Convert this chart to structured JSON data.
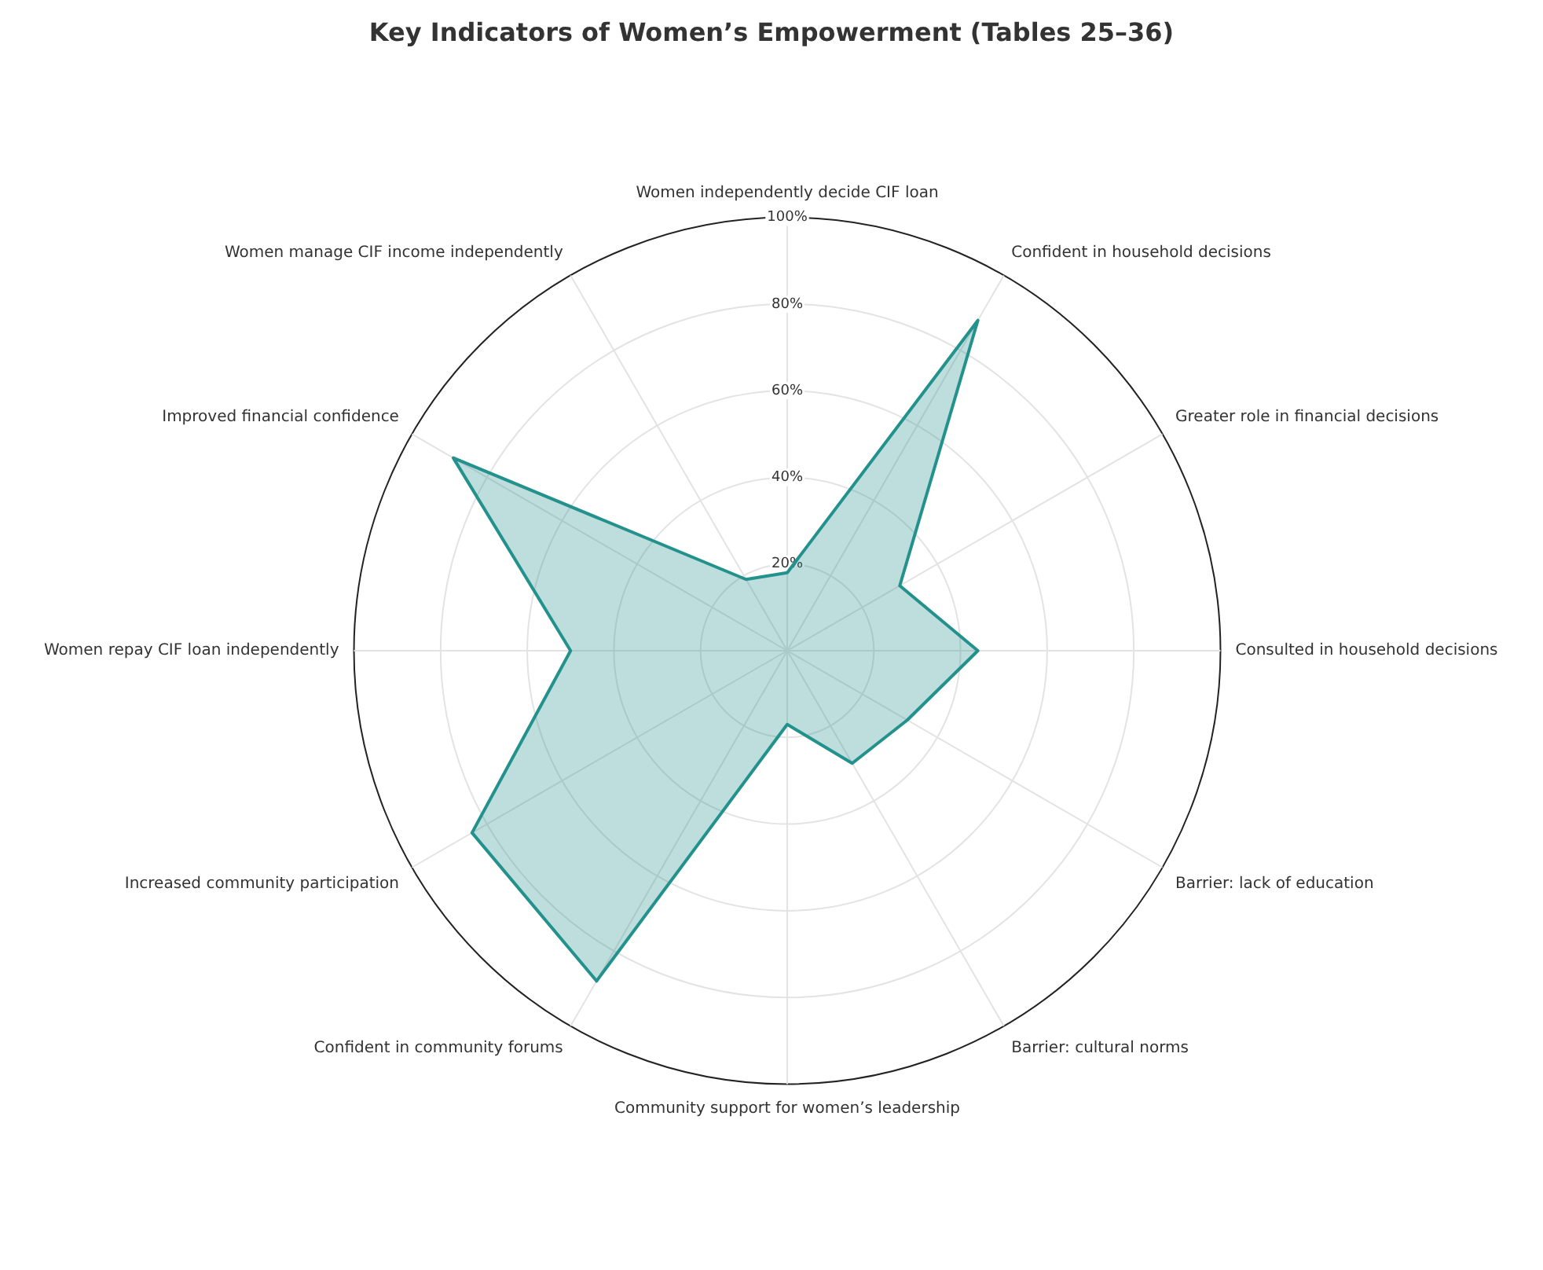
{
  "chart_data": {
    "type": "radar",
    "title": "Key Indicators of Women’s Empowerment (Tables 25–36)",
    "categories": [
      "Women independently decide CIF loan",
      "Confident in household decisions",
      "Greater role in financial decisions",
      "Consulted in household decisions",
      "Barrier: lack of education",
      "Barrier: cultural norms",
      "Community support for women’s leadership",
      "Confident in community forums",
      "Increased community participation",
      "Women repay CIF loan independently",
      "Improved financial confidence",
      "Women manage CIF income independently"
    ],
    "series": [
      {
        "color": "#23918c",
        "values": [
          18,
          88,
          30,
          44,
          32,
          30,
          17,
          88,
          84,
          50,
          89,
          19
        ]
      }
    ],
    "ylim": [
      0,
      100
    ],
    "yticks": [
      {
        "value": 20,
        "label": "20%"
      },
      {
        "value": 40,
        "label": "40%"
      },
      {
        "value": 60,
        "label": "60%"
      },
      {
        "value": 80,
        "label": "80%"
      },
      {
        "value": 100,
        "label": "100%"
      }
    ],
    "grid": true,
    "legend": false,
    "marker": "none",
    "line_style": "solid"
  }
}
